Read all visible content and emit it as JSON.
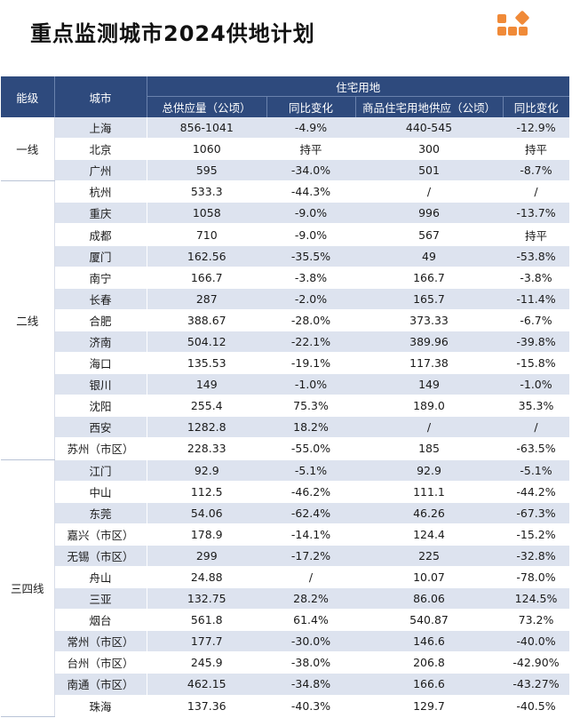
{
  "title": "重点监测城市2024供地计划",
  "headers": {
    "tier": "能级",
    "city": "城市",
    "group": "住宅用地",
    "total": "总供应量（公顷）",
    "yoy1": "同比变化",
    "commercial": "商品住宅用地供应（公顷）",
    "yoy2": "同比变化"
  },
  "tiers": [
    {
      "name": "一线",
      "rows": [
        {
          "city": "上海",
          "total": "856-1041",
          "yoy1": "-4.9%",
          "commercial": "440-545",
          "yoy2": "-12.9%"
        },
        {
          "city": "北京",
          "total": "1060",
          "yoy1": "持平",
          "commercial": "300",
          "yoy2": "持平"
        },
        {
          "city": "广州",
          "total": "595",
          "yoy1": "-34.0%",
          "commercial": "501",
          "yoy2": "-8.7%"
        }
      ]
    },
    {
      "name": "二线",
      "rows": [
        {
          "city": "杭州",
          "total": "533.3",
          "yoy1": "-44.3%",
          "commercial": "/",
          "yoy2": "/"
        },
        {
          "city": "重庆",
          "total": "1058",
          "yoy1": "-9.0%",
          "commercial": "996",
          "yoy2": "-13.7%"
        },
        {
          "city": "成都",
          "total": "710",
          "yoy1": "-9.0%",
          "commercial": "567",
          "yoy2": "持平"
        },
        {
          "city": "厦门",
          "total": "162.56",
          "yoy1": "-35.5%",
          "commercial": "49",
          "yoy2": "-53.8%"
        },
        {
          "city": "南宁",
          "total": "166.7",
          "yoy1": "-3.8%",
          "commercial": "166.7",
          "yoy2": "-3.8%"
        },
        {
          "city": "长春",
          "total": "287",
          "yoy1": "-2.0%",
          "commercial": "165.7",
          "yoy2": "-11.4%"
        },
        {
          "city": "合肥",
          "total": "388.67",
          "yoy1": "-28.0%",
          "commercial": "373.33",
          "yoy2": "-6.7%"
        },
        {
          "city": "济南",
          "total": "504.12",
          "yoy1": "-22.1%",
          "commercial": "389.96",
          "yoy2": "-39.8%"
        },
        {
          "city": "海口",
          "total": "135.53",
          "yoy1": "-19.1%",
          "commercial": "117.38",
          "yoy2": "-15.8%"
        },
        {
          "city": "银川",
          "total": "149",
          "yoy1": "-1.0%",
          "commercial": "149",
          "yoy2": "-1.0%"
        },
        {
          "city": "沈阳",
          "total": "255.4",
          "yoy1": "75.3%",
          "commercial": "189.0",
          "yoy2": "35.3%"
        },
        {
          "city": "西安",
          "total": "1282.8",
          "yoy1": "18.2%",
          "commercial": "/",
          "yoy2": "/"
        },
        {
          "city": "苏州（市区）",
          "total": "228.33",
          "yoy1": "-55.0%",
          "commercial": "185",
          "yoy2": "-63.5%"
        }
      ]
    },
    {
      "name": "三四线",
      "rows": [
        {
          "city": "江门",
          "total": "92.9",
          "yoy1": "-5.1%",
          "commercial": "92.9",
          "yoy2": "-5.1%"
        },
        {
          "city": "中山",
          "total": "112.5",
          "yoy1": "-46.2%",
          "commercial": "111.1",
          "yoy2": "-44.2%"
        },
        {
          "city": "东莞",
          "total": "54.06",
          "yoy1": "-62.4%",
          "commercial": "46.26",
          "yoy2": "-67.3%"
        },
        {
          "city": "嘉兴（市区）",
          "total": "178.9",
          "yoy1": "-14.1%",
          "commercial": "124.4",
          "yoy2": "-15.2%"
        },
        {
          "city": "无锡（市区）",
          "total": "299",
          "yoy1": "-17.2%",
          "commercial": "225",
          "yoy2": "-32.8%"
        },
        {
          "city": "舟山",
          "total": "24.88",
          "yoy1": "/",
          "commercial": "10.07",
          "yoy2": "-78.0%"
        },
        {
          "city": "三亚",
          "total": "132.75",
          "yoy1": "28.2%",
          "commercial": "86.06",
          "yoy2": "124.5%"
        },
        {
          "city": "烟台",
          "total": "561.8",
          "yoy1": "61.4%",
          "commercial": "540.87",
          "yoy2": "73.2%"
        },
        {
          "city": "常州（市区）",
          "total": "177.7",
          "yoy1": "-30.0%",
          "commercial": "146.6",
          "yoy2": "-40.0%"
        },
        {
          "city": "台州（市区）",
          "total": "245.9",
          "yoy1": "-38.0%",
          "commercial": "206.8",
          "yoy2": "-42.90%"
        },
        {
          "city": "南通（市区）",
          "total": "462.15",
          "yoy1": "-34.8%",
          "commercial": "166.6",
          "yoy2": "-43.27%"
        },
        {
          "city": "珠海",
          "total": "137.36",
          "yoy1": "-40.3%",
          "commercial": "129.7",
          "yoy2": "-40.5%"
        }
      ]
    }
  ],
  "colors": {
    "header_bg": "#2e4a7d",
    "stripe": "#dde3ef",
    "logo": "#f08a38"
  },
  "logo_icon": "orange-blocks-logo"
}
